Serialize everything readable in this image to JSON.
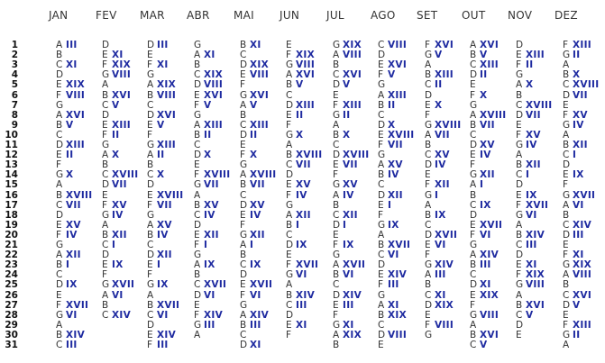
{
  "calendar": {
    "months": [
      "JAN",
      "FEV",
      "MAR",
      "ABR",
      "MAI",
      "JUN",
      "JUL",
      "AGO",
      "SET",
      "OUT",
      "NOV",
      "DEZ"
    ],
    "days": [
      "1",
      "2",
      "3",
      "4",
      "5",
      "6",
      "7",
      "8",
      "9",
      "10",
      "11",
      "12",
      "13",
      "14",
      "15",
      "16",
      "17",
      "18",
      "19",
      "20",
      "21",
      "22",
      "23",
      "24",
      "25",
      "26",
      "27",
      "28",
      "29",
      "30",
      "31"
    ],
    "columns": [
      {
        "l": [
          "A",
          "B",
          "C",
          "D",
          "E",
          "F",
          "G",
          "A",
          "B",
          "C",
          "D",
          "E",
          "F",
          "G",
          "A",
          "B",
          "C",
          "D",
          "E",
          "F",
          "G",
          "A",
          "B",
          "C",
          "D",
          "E",
          "F",
          "G",
          "A",
          "B",
          "C"
        ],
        "r": [
          "III",
          "",
          "XI",
          "",
          "XIX",
          "VIII",
          "",
          "XVI",
          "V",
          "",
          "XIII",
          "II",
          "",
          "X",
          "",
          "XVIII",
          "VII",
          "",
          "XV",
          "IV",
          "",
          "XII",
          "I",
          "",
          "IX",
          "",
          "XVII",
          "VI",
          "",
          "XIV",
          "III"
        ]
      },
      {
        "l": [
          "D",
          "E",
          "F",
          "G",
          "A",
          "B",
          "C",
          "D",
          "E",
          "F",
          "G",
          "A",
          "B",
          "C",
          "D",
          "E",
          "F",
          "G",
          "A",
          "B",
          "C",
          "D",
          "E",
          "F",
          "G",
          "A",
          "B",
          "C",
          "",
          "",
          ""
        ],
        "r": [
          "",
          "XI",
          "XIX",
          "VIII",
          "",
          "XVI",
          "V",
          "",
          "XIII",
          "II",
          "",
          "X",
          "",
          "XVIII",
          "VII",
          "",
          "XV",
          "IV",
          "",
          "XII",
          "I",
          "",
          "IX",
          "",
          "XVII",
          "VI",
          "",
          "XIV",
          "",
          "",
          ""
        ]
      },
      {
        "l": [
          "D",
          "E",
          "F",
          "G",
          "A",
          "B",
          "C",
          "D",
          "E",
          "F",
          "G",
          "A",
          "B",
          "C",
          "D",
          "E",
          "F",
          "G",
          "A",
          "B",
          "C",
          "D",
          "E",
          "F",
          "G",
          "A",
          "B",
          "C",
          "D",
          "E",
          "F"
        ],
        "r": [
          "III",
          "",
          "XI",
          "",
          "XIX",
          "VIII",
          "",
          "XVI",
          "V",
          "",
          "XIII",
          "II",
          "",
          "X",
          "",
          "XVIII",
          "VII",
          "",
          "XV",
          "IV",
          "",
          "XII",
          "I",
          "",
          "IX",
          "",
          "XVII",
          "VI",
          "",
          "XIV",
          "III"
        ]
      },
      {
        "l": [
          "G",
          "A",
          "B",
          "C",
          "D",
          "E",
          "F",
          "G",
          "A",
          "B",
          "C",
          "D",
          "E",
          "F",
          "G",
          "A",
          "B",
          "C",
          "D",
          "E",
          "F",
          "G",
          "A",
          "B",
          "C",
          "D",
          "E",
          "F",
          "G",
          "A",
          ""
        ],
        "r": [
          "",
          "XI",
          "",
          "XIX",
          "VIII",
          "XVI",
          "V",
          "",
          "XIII",
          "II",
          "",
          "X",
          "",
          "XVIII",
          "VII",
          "",
          "XV",
          "IV",
          "",
          "XII",
          "I",
          "",
          "IX",
          "",
          "XVII",
          "VI",
          "",
          "XIV",
          "III",
          "",
          ""
        ]
      },
      {
        "l": [
          "B",
          "C",
          "D",
          "E",
          "F",
          "G",
          "A",
          "B",
          "C",
          "D",
          "E",
          "F",
          "G",
          "A",
          "B",
          "C",
          "D",
          "E",
          "F",
          "G",
          "A",
          "B",
          "C",
          "D",
          "E",
          "F",
          "G",
          "A",
          "B",
          "C",
          "D"
        ],
        "r": [
          "XI",
          "",
          "XIX",
          "VIII",
          "",
          "XVI",
          "V",
          "",
          "XIII",
          "II",
          "",
          "X",
          "",
          "XVIII",
          "VII",
          "",
          "XV",
          "IV",
          "",
          "XII",
          "I",
          "",
          "IX",
          "",
          "XVII",
          "VI",
          "",
          "XIV",
          "III",
          "",
          "XI"
        ]
      },
      {
        "l": [
          "E",
          "F",
          "G",
          "A",
          "B",
          "C",
          "D",
          "E",
          "F",
          "G",
          "A",
          "B",
          "C",
          "D",
          "E",
          "F",
          "G",
          "A",
          "B",
          "C",
          "D",
          "E",
          "F",
          "G",
          "A",
          "B",
          "C",
          "D",
          "E",
          "F",
          ""
        ],
        "r": [
          "",
          "XIX",
          "VIII",
          "XVI",
          "V",
          "",
          "XIII",
          "II",
          "",
          "X",
          "",
          "XVIII",
          "VII",
          "",
          "XV",
          "IV",
          "",
          "XII",
          "I",
          "",
          "IX",
          "",
          "XVII",
          "VI",
          "",
          "XIV",
          "III",
          "",
          "XI",
          "",
          ""
        ]
      },
      {
        "l": [
          "G",
          "A",
          "B",
          "C",
          "D",
          "E",
          "F",
          "G",
          "A",
          "B",
          "C",
          "D",
          "E",
          "F",
          "G",
          "A",
          "B",
          "C",
          "D",
          "E",
          "F",
          "G",
          "A",
          "B",
          "C",
          "D",
          "E",
          "F",
          "G",
          "A",
          "B"
        ],
        "r": [
          "XIX",
          "VIII",
          "",
          "XVI",
          "V",
          "",
          "XIII",
          "II",
          "",
          "X",
          "",
          "XVIII",
          "VII",
          "",
          "XV",
          "IV",
          "",
          "XII",
          "I",
          "",
          "IX",
          "",
          "XVII",
          "VI",
          "",
          "XIV",
          "III",
          "",
          "XI",
          "XIX",
          ""
        ]
      },
      {
        "l": [
          "C",
          "D",
          "E",
          "F",
          "G",
          "A",
          "B",
          "C",
          "D",
          "E",
          "F",
          "G",
          "A",
          "B",
          "C",
          "D",
          "E",
          "F",
          "G",
          "A",
          "B",
          "C",
          "D",
          "E",
          "F",
          "G",
          "A",
          "B",
          "C",
          "D",
          "E"
        ],
        "r": [
          "VIII",
          "",
          "XVI",
          "V",
          "",
          "XIII",
          "II",
          "",
          "X",
          "XVIII",
          "VII",
          "",
          "XV",
          "IV",
          "",
          "XII",
          "I",
          "",
          "IX",
          "",
          "XVII",
          "VI",
          "",
          "XIV",
          "III",
          "",
          "XI",
          "XIX",
          "",
          "VIII",
          ""
        ]
      },
      {
        "l": [
          "F",
          "G",
          "A",
          "B",
          "C",
          "D",
          "E",
          "F",
          "G",
          "A",
          "B",
          "C",
          "D",
          "E",
          "F",
          "G",
          "A",
          "B",
          "C",
          "D",
          "E",
          "F",
          "G",
          "A",
          "B",
          "C",
          "D",
          "E",
          "F",
          "G",
          ""
        ],
        "r": [
          "XVI",
          "V",
          "",
          "XIII",
          "II",
          "",
          "X",
          "",
          "XVIII",
          "VII",
          "",
          "XV",
          "IV",
          "",
          "XII",
          "I",
          "",
          "IX",
          "",
          "XVII",
          "VI",
          "",
          "XIV",
          "III",
          "",
          "XI",
          "XIX",
          "",
          "VIII",
          "",
          ""
        ]
      },
      {
        "l": [
          "A",
          "B",
          "C",
          "D",
          "E",
          "F",
          "G",
          "A",
          "B",
          "C",
          "D",
          "E",
          "F",
          "G",
          "A",
          "B",
          "C",
          "D",
          "E",
          "F",
          "G",
          "A",
          "B",
          "C",
          "D",
          "E",
          "F",
          "G",
          "A",
          "B",
          "C"
        ],
        "r": [
          "XVI",
          "V",
          "XIII",
          "II",
          "",
          "X",
          "",
          "XVIII",
          "VII",
          "",
          "XV",
          "IV",
          "",
          "XII",
          "I",
          "",
          "IX",
          "",
          "XVII",
          "VI",
          "",
          "XIV",
          "III",
          "",
          "XI",
          "XIX",
          "",
          "VIII",
          "",
          "XVI",
          "V"
        ]
      },
      {
        "l": [
          "D",
          "E",
          "F",
          "G",
          "A",
          "B",
          "C",
          "D",
          "E",
          "F",
          "G",
          "A",
          "B",
          "C",
          "D",
          "E",
          "F",
          "G",
          "A",
          "B",
          "C",
          "D",
          "E",
          "F",
          "G",
          "A",
          "B",
          "C",
          "D",
          "E",
          ""
        ],
        "r": [
          "",
          "XIII",
          "II",
          "",
          "X",
          "",
          "XVIII",
          "VII",
          "",
          "XV",
          "IV",
          "",
          "XII",
          "I",
          "",
          "IX",
          "XVII",
          "VI",
          "",
          "XIV",
          "III",
          "",
          "XI",
          "XIX",
          "VIII",
          "",
          "XVI",
          "V",
          "",
          "",
          ""
        ]
      },
      {
        "l": [
          "F",
          "G",
          "A",
          "B",
          "C",
          "D",
          "E",
          "F",
          "G",
          "A",
          "B",
          "C",
          "D",
          "E",
          "F",
          "G",
          "A",
          "B",
          "C",
          "D",
          "E",
          "F",
          "G",
          "A",
          "B",
          "C",
          "D",
          "E",
          "F",
          "G",
          "A"
        ],
        "r": [
          "XIII",
          "II",
          "",
          "X",
          "XVIII",
          "VII",
          "",
          "XV",
          "IV",
          "",
          "XII",
          "I",
          "",
          "IX",
          "",
          "XVII",
          "VI",
          "",
          "XIV",
          "III",
          "",
          "XI",
          "XIX",
          "VIII",
          "",
          "XVI",
          "V",
          "",
          "XIII",
          "II",
          ""
        ]
      }
    ]
  }
}
